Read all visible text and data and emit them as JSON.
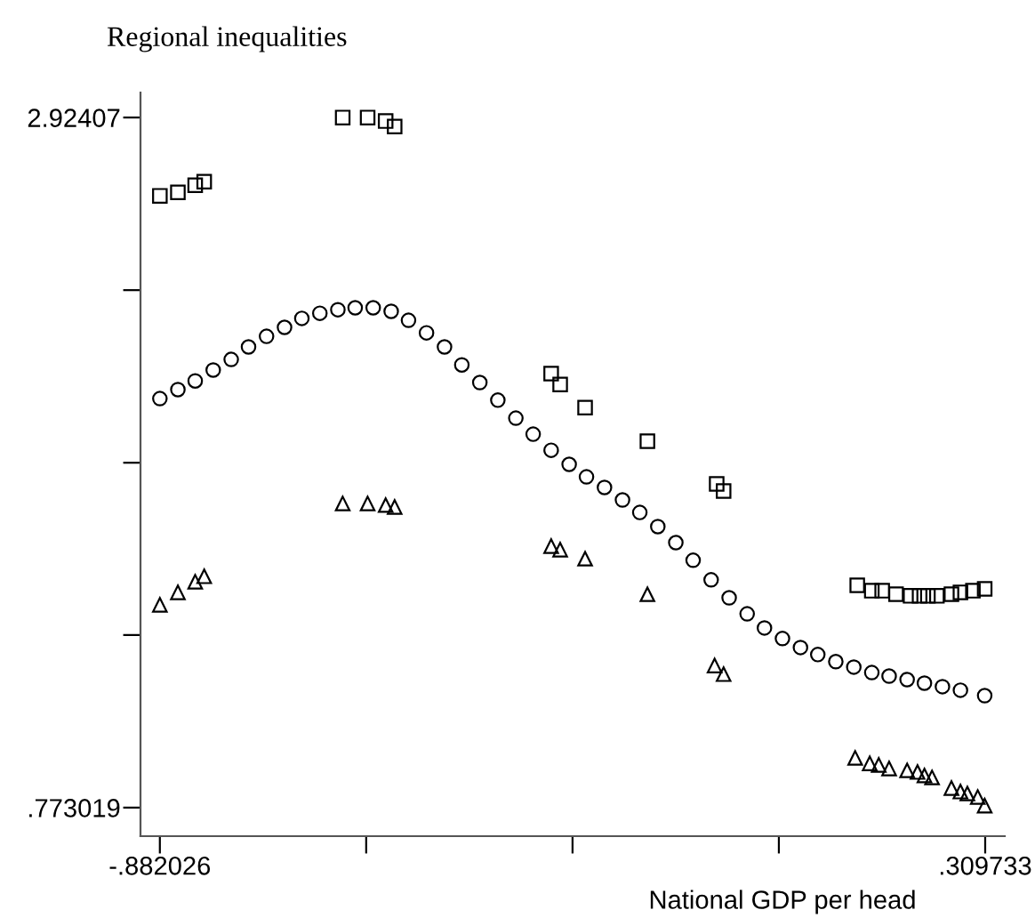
{
  "chart_data": {
    "type": "scatter",
    "ylabel": "Regional inequalities",
    "xlabel": "National GDP per head",
    "xlim": [
      -0.91,
      0.338
    ],
    "ylim": [
      0.684,
      3.002
    ],
    "xticks": [
      {
        "value": -0.882026,
        "label": "-.882026"
      },
      {
        "value": -0.584086,
        "label": null
      },
      {
        "value": -0.286147,
        "label": null
      },
      {
        "value": 0.011793,
        "label": null
      },
      {
        "value": 0.309733,
        "label": ".309733"
      }
    ],
    "yticks": [
      {
        "value": 0.773019,
        "label": ".773019"
      },
      {
        "value": 1.311,
        "label": null
      },
      {
        "value": 1.848,
        "label": null
      },
      {
        "value": 2.386,
        "label": null
      },
      {
        "value": 2.92407,
        "label": "2.92407"
      }
    ],
    "grid": false,
    "legend": false,
    "series": [
      {
        "color": "#000000",
        "marker": "square",
        "x": [
          -0.882,
          -0.856,
          -0.831,
          -0.818,
          -0.618,
          -0.582,
          -0.556,
          -0.543,
          -0.317,
          -0.304,
          -0.268,
          -0.178,
          -0.078,
          -0.068,
          0.125,
          0.146,
          0.161,
          0.181,
          0.202,
          0.215,
          0.227,
          0.24,
          0.261,
          0.274,
          0.292,
          0.309
        ],
        "values": [
          2.68,
          2.691,
          2.713,
          2.724,
          2.924,
          2.924,
          2.913,
          2.896,
          2.126,
          2.092,
          2.02,
          1.915,
          1.782,
          1.76,
          1.466,
          1.449,
          1.449,
          1.438,
          1.433,
          1.433,
          1.433,
          1.433,
          1.438,
          1.444,
          1.449,
          1.455
        ]
      },
      {
        "color": "#000000",
        "marker": "circle",
        "x": [
          -0.882,
          -0.856,
          -0.831,
          -0.805,
          -0.779,
          -0.754,
          -0.728,
          -0.702,
          -0.677,
          -0.651,
          -0.625,
          -0.6,
          -0.574,
          -0.548,
          -0.523,
          -0.497,
          -0.471,
          -0.446,
          -0.42,
          -0.394,
          -0.368,
          -0.343,
          -0.317,
          -0.291,
          -0.266,
          -0.24,
          -0.214,
          -0.189,
          -0.163,
          -0.137,
          -0.112,
          -0.086,
          -0.06,
          -0.034,
          -0.009,
          0.017,
          0.043,
          0.068,
          0.094,
          0.12,
          0.146,
          0.171,
          0.197,
          0.222,
          0.248,
          0.274,
          0.309
        ],
        "values": [
          2.048,
          2.076,
          2.103,
          2.137,
          2.17,
          2.209,
          2.242,
          2.27,
          2.298,
          2.314,
          2.325,
          2.331,
          2.331,
          2.32,
          2.292,
          2.253,
          2.209,
          2.153,
          2.098,
          2.043,
          1.987,
          1.937,
          1.887,
          1.843,
          1.804,
          1.771,
          1.732,
          1.693,
          1.649,
          1.599,
          1.544,
          1.483,
          1.427,
          1.377,
          1.333,
          1.3,
          1.272,
          1.25,
          1.228,
          1.211,
          1.194,
          1.183,
          1.172,
          1.161,
          1.15,
          1.139,
          1.122
        ]
      },
      {
        "color": "#000000",
        "marker": "triangle",
        "x": [
          -0.882,
          -0.856,
          -0.831,
          -0.818,
          -0.618,
          -0.582,
          -0.556,
          -0.543,
          -0.317,
          -0.304,
          -0.268,
          -0.178,
          -0.081,
          -0.068,
          0.122,
          0.143,
          0.156,
          0.171,
          0.197,
          0.212,
          0.222,
          0.233,
          0.261,
          0.274,
          0.284,
          0.299,
          0.309
        ],
        "values": [
          1.405,
          1.444,
          1.477,
          1.494,
          1.721,
          1.721,
          1.716,
          1.71,
          1.588,
          1.577,
          1.549,
          1.438,
          1.216,
          1.189,
          0.928,
          0.911,
          0.906,
          0.895,
          0.889,
          0.884,
          0.873,
          0.867,
          0.834,
          0.823,
          0.817,
          0.806,
          0.779
        ]
      }
    ]
  }
}
